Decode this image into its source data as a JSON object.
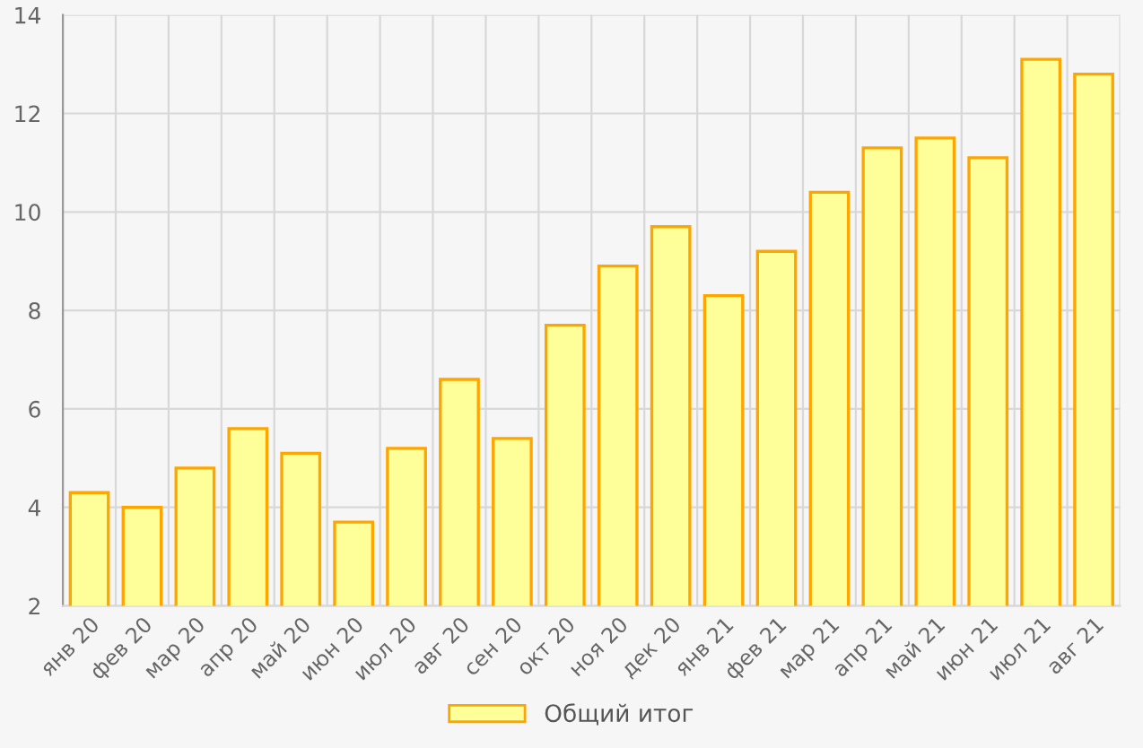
{
  "chart_data": {
    "type": "bar",
    "categories": [
      "янв 20",
      "фев 20",
      "мар 20",
      "апр 20",
      "май 20",
      "июн 20",
      "июл 20",
      "авг 20",
      "сен 20",
      "окт 20",
      "ноя 20",
      "дек 20",
      "янв 21",
      "фев 21",
      "мар 21",
      "апр 21",
      "май 21",
      "июн 21",
      "июл 21",
      "авг 21"
    ],
    "series": [
      {
        "name": "Общий итог",
        "color": "#ffff99",
        "values": [
          4.3,
          4.0,
          4.8,
          5.6,
          5.1,
          3.7,
          5.2,
          6.6,
          5.4,
          7.7,
          8.9,
          9.7,
          8.3,
          9.2,
          10.4,
          11.3,
          11.5,
          11.1,
          13.1,
          12.8
        ]
      }
    ],
    "ylim": [
      2,
      14
    ],
    "yticks": [
      2,
      4,
      6,
      8,
      10,
      12,
      14
    ],
    "grid": true,
    "legend": "bottom"
  }
}
